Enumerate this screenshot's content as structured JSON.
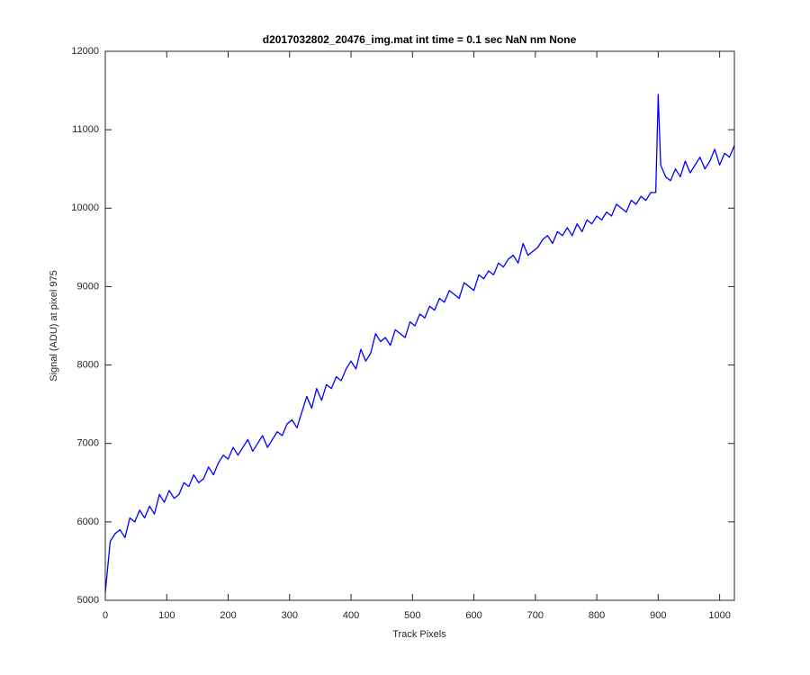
{
  "chart_data": {
    "type": "line",
    "title": "d2017032802_20476_img.mat int time = 0.1 sec  NaN nm None",
    "xlabel": "Track Pixels",
    "ylabel": "Signal (ADU) at pixel 975",
    "xlim": [
      0,
      1024
    ],
    "ylim": [
      5000,
      12000
    ],
    "xticks": [
      0,
      100,
      200,
      300,
      400,
      500,
      600,
      700,
      800,
      900,
      1000
    ],
    "yticks": [
      5000,
      6000,
      7000,
      8000,
      9000,
      10000,
      11000,
      12000
    ],
    "grid": false,
    "x": [
      0,
      8,
      16,
      24,
      32,
      40,
      48,
      56,
      64,
      72,
      80,
      88,
      96,
      104,
      112,
      120,
      128,
      136,
      144,
      152,
      160,
      168,
      176,
      184,
      192,
      200,
      208,
      216,
      224,
      232,
      240,
      248,
      256,
      264,
      272,
      280,
      288,
      296,
      304,
      312,
      320,
      328,
      336,
      344,
      352,
      360,
      368,
      376,
      384,
      392,
      400,
      408,
      416,
      424,
      432,
      440,
      448,
      456,
      464,
      472,
      480,
      488,
      496,
      504,
      512,
      520,
      528,
      536,
      544,
      552,
      560,
      568,
      576,
      584,
      592,
      600,
      608,
      616,
      624,
      632,
      640,
      648,
      656,
      664,
      672,
      680,
      688,
      696,
      704,
      712,
      720,
      728,
      736,
      744,
      752,
      760,
      768,
      776,
      784,
      792,
      800,
      808,
      816,
      824,
      832,
      840,
      848,
      856,
      864,
      872,
      880,
      888,
      896,
      900,
      904,
      912,
      920,
      928,
      936,
      944,
      952,
      960,
      968,
      976,
      984,
      992,
      1000,
      1008,
      1016,
      1024
    ],
    "series": [
      {
        "name": "signal",
        "color": "#0000ff",
        "values": [
          5100,
          5750,
          5850,
          5900,
          5800,
          6050,
          6000,
          6150,
          6050,
          6200,
          6100,
          6350,
          6250,
          6400,
          6300,
          6350,
          6500,
          6450,
          6600,
          6500,
          6550,
          6700,
          6600,
          6750,
          6850,
          6800,
          6950,
          6850,
          6950,
          7050,
          6900,
          7000,
          7100,
          6950,
          7050,
          7150,
          7100,
          7250,
          7300,
          7200,
          7400,
          7600,
          7450,
          7700,
          7550,
          7750,
          7700,
          7850,
          7800,
          7950,
          8050,
          7950,
          8200,
          8050,
          8150,
          8400,
          8300,
          8350,
          8250,
          8450,
          8400,
          8350,
          8550,
          8500,
          8650,
          8600,
          8750,
          8700,
          8850,
          8800,
          8950,
          8900,
          8850,
          9050,
          9000,
          8950,
          9150,
          9100,
          9200,
          9150,
          9300,
          9250,
          9350,
          9400,
          9300,
          9550,
          9400,
          9450,
          9500,
          9600,
          9650,
          9550,
          9700,
          9650,
          9750,
          9650,
          9800,
          9700,
          9850,
          9800,
          9900,
          9850,
          9950,
          9900,
          10050,
          10000,
          9950,
          10100,
          10050,
          10150,
          10100,
          10200,
          10200,
          11450,
          10550,
          10400,
          10350,
          10500,
          10400,
          10600,
          10450,
          10550,
          10650,
          10500,
          10600,
          10750,
          10550,
          10700,
          10650,
          10800
        ]
      }
    ]
  }
}
